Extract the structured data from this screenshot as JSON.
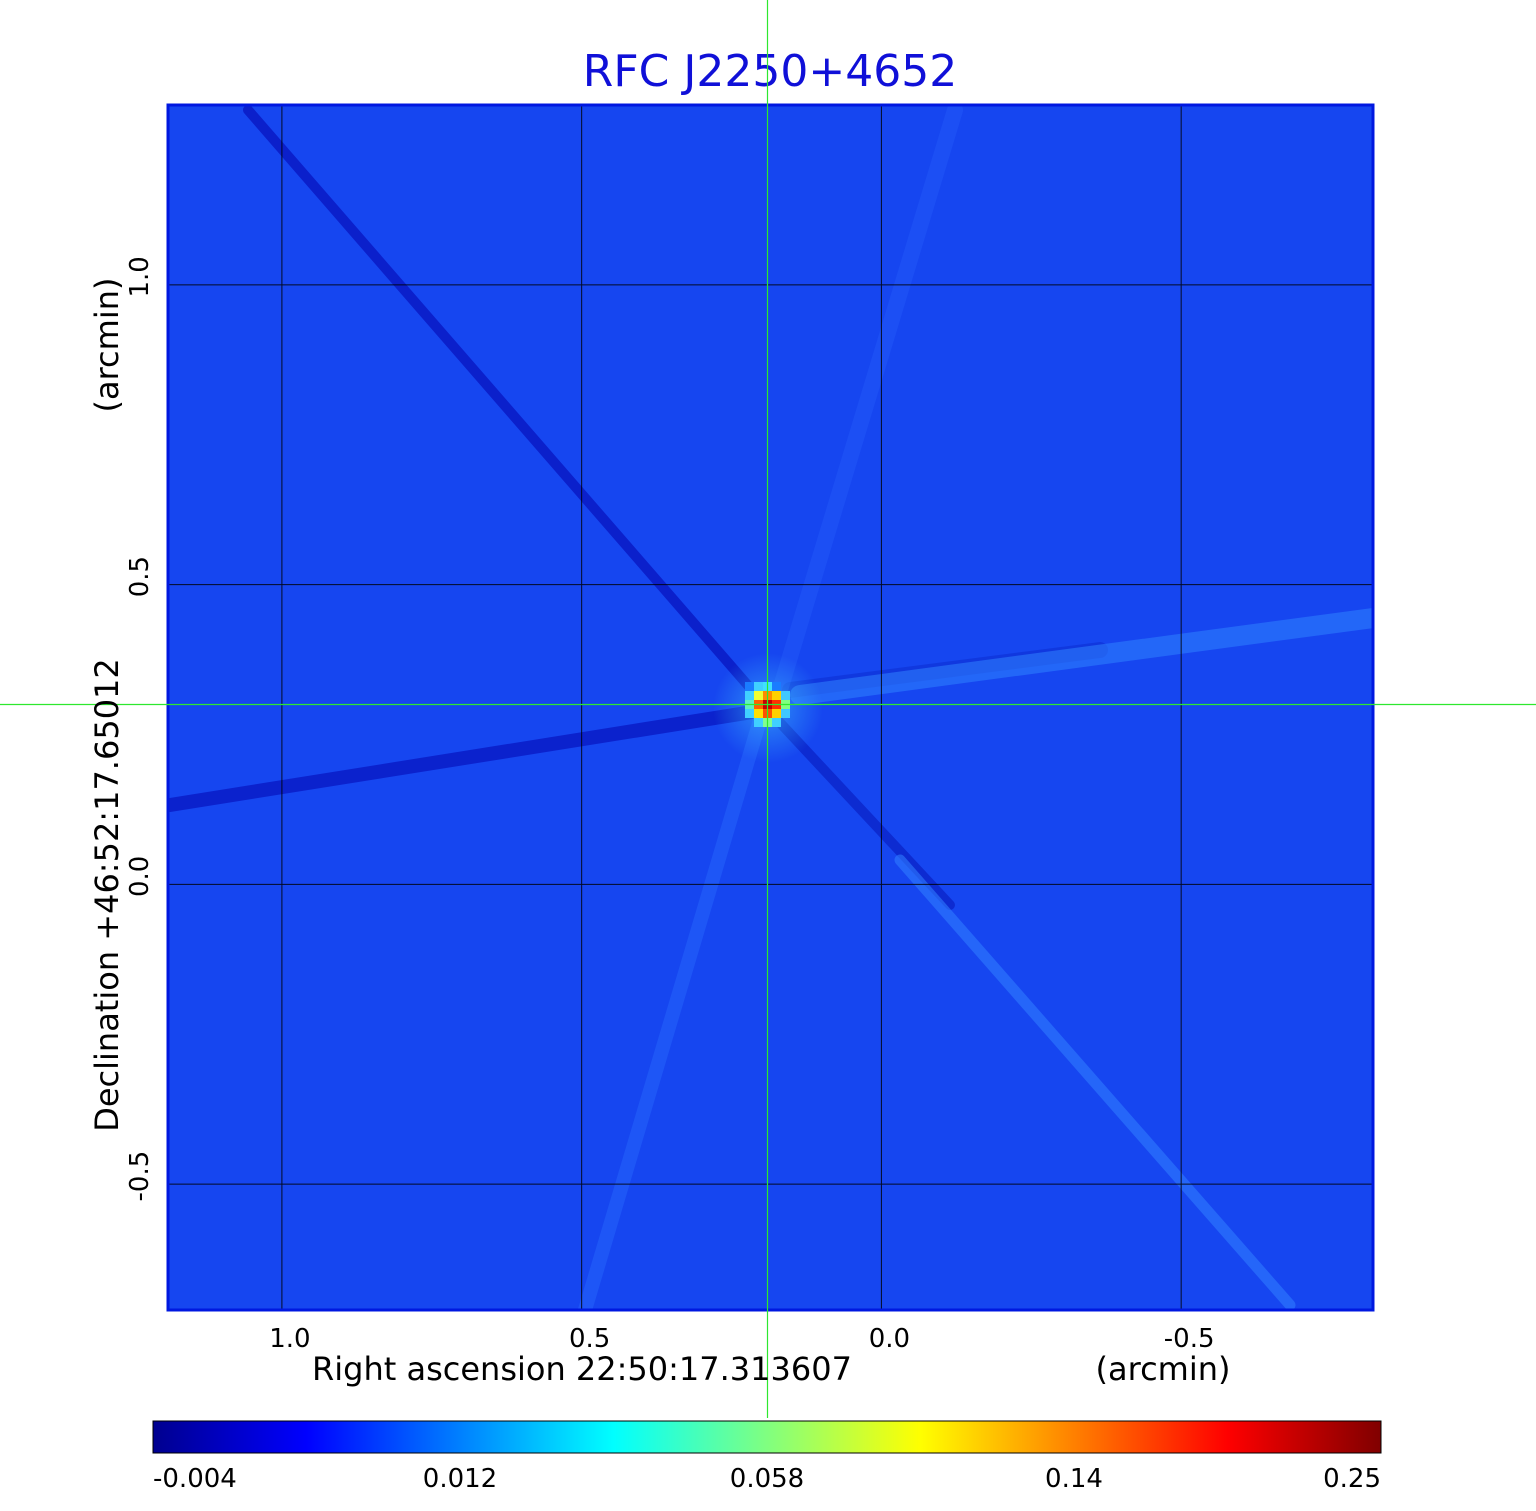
{
  "chart_data": {
    "type": "heatmap",
    "title": "RFC J2250+4652",
    "xlabel": "Right ascension  22:50:17.313607",
    "xunit": "(arcmin)",
    "ylabel": "Declination  +46:52:17.65012",
    "yunit": "(arcmin)",
    "xlim": [
      1.19,
      -0.82
    ],
    "ylim": [
      -0.71,
      1.3
    ],
    "x_ticks": [
      {
        "value": 1.0,
        "label": "1.0"
      },
      {
        "value": 0.5,
        "label": "0.5"
      },
      {
        "value": 0.0,
        "label": "0.0"
      },
      {
        "value": -0.5,
        "label": "-0.5"
      }
    ],
    "y_ticks": [
      {
        "value": 1.0,
        "label": "1.0"
      },
      {
        "value": 0.5,
        "label": "0.5"
      },
      {
        "value": 0.0,
        "label": "0.0"
      },
      {
        "value": -0.5,
        "label": "-0.5"
      }
    ],
    "grid": true,
    "crosshair": {
      "x": 0.19,
      "y": 0.3,
      "color": "#2ee82e"
    },
    "source": {
      "x": 0.19,
      "y": 0.3,
      "peak": 0.25
    },
    "colorbar": {
      "orientation": "horizontal",
      "ticks": [
        {
          "value": -0.004,
          "label": "-0.004"
        },
        {
          "value": 0.012,
          "label": "0.012"
        },
        {
          "value": 0.058,
          "label": "0.058"
        },
        {
          "value": 0.14,
          "label": "0.14"
        },
        {
          "value": 0.25,
          "label": "0.25"
        }
      ],
      "colormap": [
        "#00008f",
        "#0000ff",
        "#0080ff",
        "#00ffff",
        "#80ff80",
        "#ffff00",
        "#ff8000",
        "#ff0000",
        "#800000"
      ]
    },
    "colors": {
      "background": "#1646f0",
      "frame": "#0018e0",
      "grid": "#000000",
      "title": "#1010d8"
    }
  }
}
